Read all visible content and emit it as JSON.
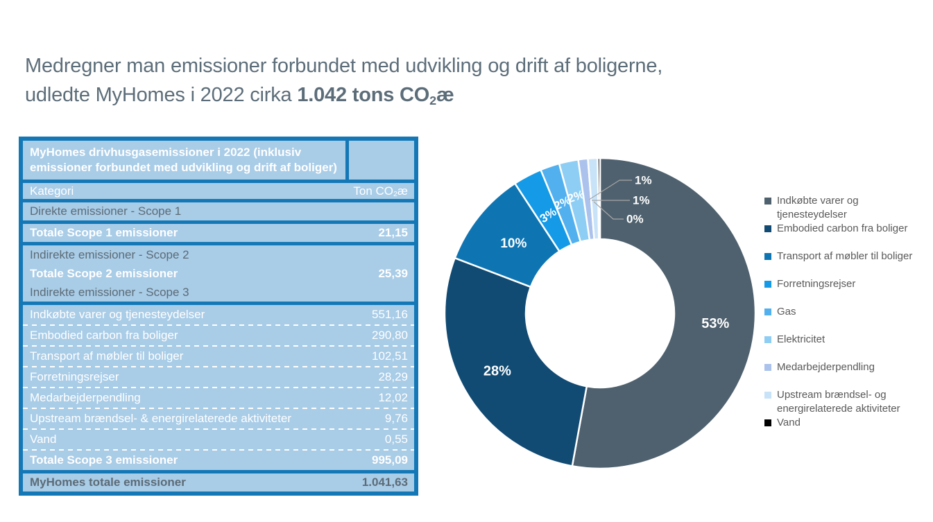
{
  "title": {
    "line1": "Medregner man emissioner forbundet med udvikling og drift af boligerne,",
    "line2_regular": "udledte MyHomes i 2022 cirka ",
    "line2_bold_prefix": "1.042 tons CO",
    "line2_sub": "2",
    "line2_bold_suffix": "æ"
  },
  "colors": {
    "accent_blue": "#1478b6",
    "row_bg": "#a9cce7",
    "text_light": "#ffffff",
    "text_dark": "#5c6b76",
    "title_text": "#5c6d79",
    "legend_text": "#595959",
    "leader_line": "#a6a6a6"
  },
  "chart_data": [
    {
      "type": "pie",
      "donut": true,
      "start": "top",
      "direction": "clockwise",
      "legend_position": "right",
      "slices": [
        {
          "label": "Indkøbte varer og tjenesteydelser",
          "pct": 53,
          "display": "53%",
          "color": "#4f616e"
        },
        {
          "label": "Embodied carbon fra boliger",
          "pct": 28,
          "display": "28%",
          "color": "#114a72"
        },
        {
          "label": "Transport af møbler til boliger",
          "pct": 10,
          "display": "10%",
          "color": "#0f75b2"
        },
        {
          "label": "Forretningsrejser",
          "pct": 3,
          "display": "3%",
          "color": "#149ae6"
        },
        {
          "label": "Gas",
          "pct": 2,
          "display": "2%",
          "color": "#52b0ef"
        },
        {
          "label": "Elektricitet",
          "pct": 2,
          "display": "2%",
          "color": "#8fcef4"
        },
        {
          "label": "Medarbejderpendling",
          "pct": 1,
          "display": "1%",
          "color": "#abc2ec"
        },
        {
          "label": "Upstream brændsel- og energirelaterede aktiviteter",
          "pct": 1,
          "display": "1%",
          "color": "#c8e3f8"
        },
        {
          "label": "Vand",
          "pct": 0,
          "display": "0%",
          "color": "#000000"
        }
      ]
    },
    {
      "type": "table",
      "title": "MyHomes drivhusgasemissioner i 2022 (inklusiv emissioner forbundet med udvikling og drift af boliger)",
      "col_category": "Kategori",
      "col_unit_prefix": "Ton CO",
      "col_unit_sub": "2",
      "col_unit_suffix": "æ",
      "scope1_header": "Direkte emissioner - Scope 1",
      "scope1_total_label": "Totale Scope 1 emissioner",
      "scope1_total_value": "21,15",
      "scope2_header": "Indirekte emissioner - Scope 2",
      "scope2_total_label": "Totale Scope 2 emissioner",
      "scope2_total_value": "25,39",
      "scope3_header": "Indirekte emissioner - Scope 3",
      "scope3_rows": [
        {
          "label": "Indkøbte varer og tjenesteydelser",
          "value": "551,16"
        },
        {
          "label": "Embodied carbon fra boliger",
          "value": "290,80"
        },
        {
          "label": "Transport af møbler til boliger",
          "value": "102,51"
        },
        {
          "label": "Forretningsrejser",
          "value": "28,29"
        },
        {
          "label": "Medarbejderpendling",
          "value": "12,02"
        },
        {
          "label": "Upstream brændsel- & energirelaterede aktiviteter",
          "value": "9,76"
        },
        {
          "label": "Vand",
          "value": "0,55"
        }
      ],
      "scope3_total_label": "Totale Scope 3 emissioner",
      "scope3_total_value": "995,09",
      "total_label": "MyHomes totale emissioner",
      "total_value": "1.041,63"
    }
  ]
}
